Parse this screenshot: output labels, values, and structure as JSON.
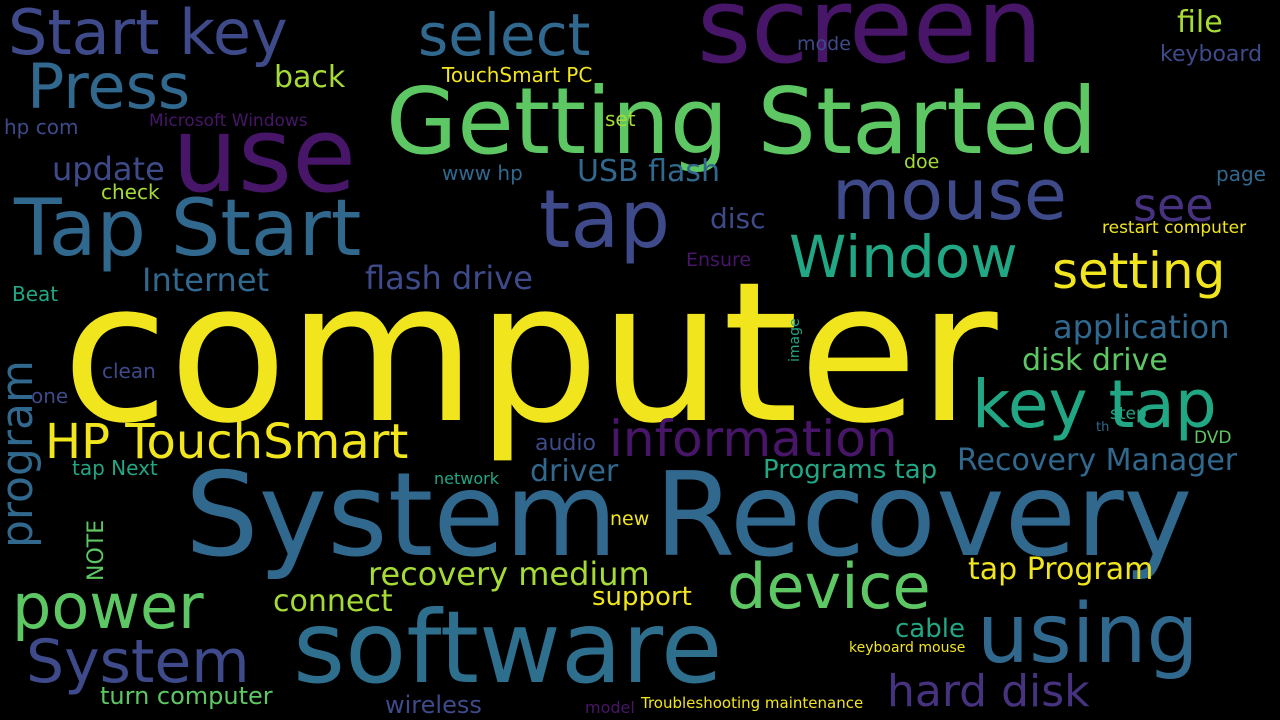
{
  "palette": {
    "background": "#000000",
    "yellow": "#f1e51d",
    "lightgreen": "#a6db35",
    "green": "#5dc863",
    "teal": "#22a785",
    "blue": "#31688e",
    "blue2": "#2f6f8e",
    "indigo": "#3e4a89",
    "purple": "#46327e",
    "darkpurple": "#481668"
  },
  "words": {
    "computer": "computer",
    "system_recovery": "System Recovery",
    "getting_started": "Getting Started",
    "screen": "screen",
    "software": "software",
    "use": "use",
    "tap_start": "Tap Start",
    "using": "using",
    "tap": "tap",
    "mouse": "mouse",
    "device": "device",
    "key_tap": "key tap",
    "start_key": "Start key",
    "window": "Window",
    "system": "System",
    "power": "power",
    "information": "information",
    "hp_touchsmart": "HP TouchSmart",
    "press": "Press",
    "select": "select",
    "setting": "setting",
    "hard_disk": "hard disk",
    "program": "program",
    "recovery_manager": "Recovery Manager",
    "recovery_medium": "recovery medium",
    "application": "application",
    "tap_program": "tap Program",
    "see": "see",
    "flash_drive": "flash drive",
    "internet": "Internet",
    "disk_drive": "disk drive",
    "update": "update",
    "connect": "connect",
    "driver": "driver",
    "file": "file",
    "usb_flash": "USB flash",
    "back": "back",
    "programs_tap": "Programs tap",
    "disc": "disc",
    "turn_computer": "turn computer",
    "support": "support",
    "cable": "cable",
    "wireless": "wireless",
    "keyboard": "keyboard",
    "mode": "mode",
    "touchsmart_pc": "TouchSmart PC",
    "hp_com": "hp com",
    "microsoft_windows": "Microsoft Windows",
    "set": "set",
    "www_hp": "www hp",
    "check": "check",
    "doe": "doe",
    "page": "page",
    "restart_computer": "restart computer",
    "ensure": "Ensure",
    "beat": "Beat",
    "clean": "clean",
    "one": "one",
    "image": "image",
    "step": "step",
    "th": "th",
    "dvd": "DVD",
    "audio": "audio",
    "tap_next": "tap Next",
    "network": "network",
    "note": "NOTE",
    "new": "new",
    "keyboard_mouse": "keyboard mouse",
    "model": "model",
    "troubleshooting_maintenance": "Troubleshooting maintenance"
  }
}
